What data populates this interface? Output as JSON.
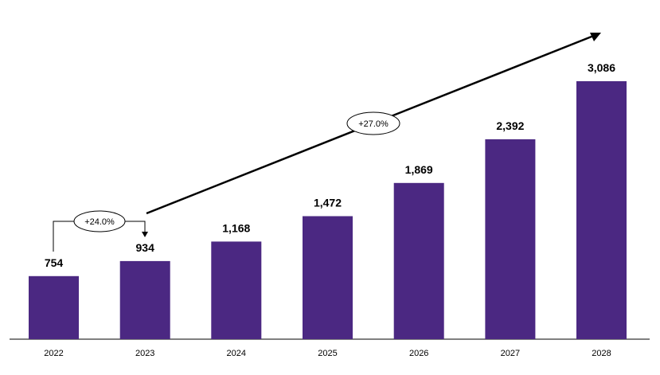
{
  "chart_data": {
    "type": "bar",
    "categories": [
      "2022",
      "2023",
      "2024",
      "2025",
      "2026",
      "2027",
      "2028"
    ],
    "values": [
      754,
      934,
      1168,
      1472,
      1869,
      2392,
      3086
    ],
    "value_labels": [
      "754",
      "934",
      "1,168",
      "1,472",
      "1,869",
      "2,392",
      "3,086"
    ],
    "title": "",
    "xlabel": "",
    "ylabel": "",
    "ylim": [
      0,
      3200
    ],
    "grid": false,
    "legend": "none",
    "bar_color": "#4b2882",
    "annotations": [
      {
        "label": "+24.0%",
        "from": "2022",
        "to": "2023"
      },
      {
        "label": "+27.0%",
        "from": "2023",
        "to": "2028"
      }
    ]
  }
}
